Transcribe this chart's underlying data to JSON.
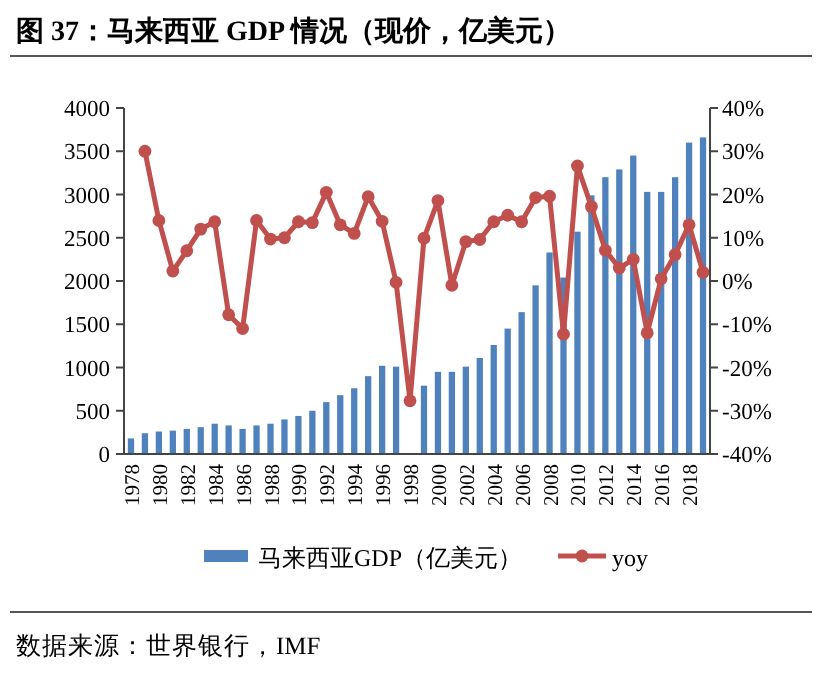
{
  "chart_data": {
    "type": "bar",
    "title": "**图 37：马来西亚 GDP 情况（现价，亿美元）**",
    "categories": [
      "1978",
      null,
      "1980",
      null,
      "1982",
      null,
      "1984",
      null,
      "1986",
      null,
      "1988",
      null,
      "1990",
      null,
      "1992",
      null,
      "1994",
      null,
      "1996",
      null,
      "1998",
      null,
      "2000",
      null,
      "2002",
      null,
      "2004",
      null,
      "2006",
      null,
      "2008",
      null,
      "2010",
      null,
      "2012",
      null,
      "2014",
      null,
      "2016",
      null,
      "2018",
      null
    ],
    "series": [
      {
        "name": "马来西亚GDP（亿美元）",
        "color": "#4f81bd",
        "values": [
          180,
          240,
          260,
          270,
          290,
          310,
          350,
          330,
          290,
          330,
          350,
          400,
          440,
          500,
          600,
          680,
          760,
          900,
          1020,
          1010,
          null,
          790,
          950,
          950,
          1010,
          1110,
          1260,
          1450,
          1640,
          1950,
          2330,
          2040,
          2570,
          2990,
          3200,
          3290,
          3450,
          3030,
          3030,
          3200,
          3600,
          3660
        ]
      },
      {
        "name": "yoy",
        "type": "line",
        "axis": "y2",
        "color": "#c0504d",
        "marker": "circle",
        "values": [
          null,
          30,
          14,
          2.3,
          7,
          12,
          13.7,
          -7.8,
          -11,
          14,
          9.7,
          10,
          13.7,
          13.5,
          20.5,
          13,
          11,
          19.5,
          13.8,
          -0.3,
          -27.7,
          9.9,
          18.6,
          -1,
          9.1,
          9.6,
          13.7,
          15.2,
          13.7,
          19.3,
          19.6,
          -12.3,
          26.6,
          17.2,
          7.1,
          3,
          5,
          -12,
          0.5,
          6.1,
          13,
          2
        ]
      }
    ],
    "ylim": [
      0,
      4000
    ],
    "yticks": [
      0,
      500,
      1000,
      1500,
      2000,
      2500,
      3000,
      3500,
      4000
    ],
    "y2lim": [
      -40,
      40
    ],
    "y2ticks": [
      {
        "value": -40,
        "label": "-40%"
      },
      {
        "value": -30,
        "label": "-30%"
      },
      {
        "value": -20,
        "label": "-20%"
      },
      {
        "value": -10,
        "label": "-10%"
      },
      {
        "value": 0,
        "label": "0%"
      },
      {
        "value": 10,
        "label": "10%"
      },
      {
        "value": 20,
        "label": "20%"
      },
      {
        "value": 30,
        "label": "30%"
      },
      {
        "value": 40,
        "label": "40%"
      }
    ],
    "legend": "bottom",
    "grid": false,
    "annotations": [
      "数据来源：世界银行，IMF"
    ]
  }
}
